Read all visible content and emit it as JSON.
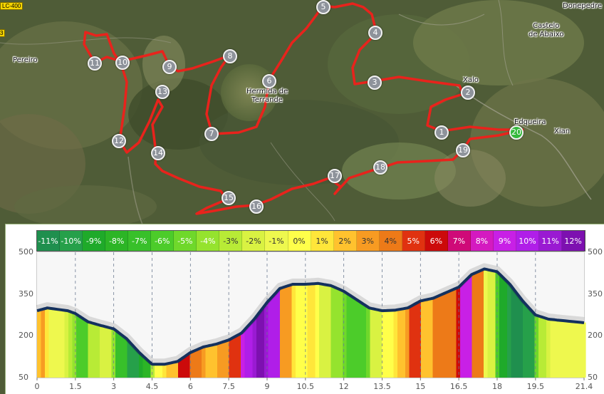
{
  "map": {
    "places": [
      {
        "id": "pereiro",
        "name": "Pereiro"
      },
      {
        "id": "donepedre",
        "name": "Donepedre"
      },
      {
        "id": "castelo",
        "name": "Castelo\nde Abaixo"
      },
      {
        "id": "xalo",
        "name": "Xalo"
      },
      {
        "id": "ermida",
        "name": "Hermida de\nTerrande"
      },
      {
        "id": "edqueira",
        "name": "Edqueira"
      },
      {
        "id": "xian",
        "name": "Xian"
      }
    ],
    "road_tags": [
      "LC-400",
      "3"
    ],
    "waypoints": [
      "1",
      "2",
      "3",
      "4",
      "5",
      "6",
      "7",
      "8",
      "9",
      "10",
      "11",
      "12",
      "13",
      "14",
      "15",
      "16",
      "17",
      "18",
      "19",
      "20"
    ],
    "route_color": "#e8231c"
  },
  "legend": [
    {
      "label": "-11%",
      "color": "#1f8f4e"
    },
    {
      "label": "-10%",
      "color": "#26a04a"
    },
    {
      "label": "-9%",
      "color": "#1faa2a"
    },
    {
      "label": "-8%",
      "color": "#2cb526"
    },
    {
      "label": "-7%",
      "color": "#38c02a"
    },
    {
      "label": "-6%",
      "color": "#4ccc2a"
    },
    {
      "label": "-5%",
      "color": "#6fd82b"
    },
    {
      "label": "-4%",
      "color": "#95e32e"
    },
    {
      "label": "-3%",
      "color": "#b8eb36"
    },
    {
      "label": "-2%",
      "color": "#d9f242"
    },
    {
      "label": "-1%",
      "color": "#eef84e"
    },
    {
      "label": "0%",
      "color": "#ffff4a"
    },
    {
      "label": "1%",
      "color": "#ffe63a"
    },
    {
      "label": "2%",
      "color": "#ffc22e"
    },
    {
      "label": "3%",
      "color": "#f79b22"
    },
    {
      "label": "4%",
      "color": "#ed7a18"
    },
    {
      "label": "5%",
      "color": "#e03210"
    },
    {
      "label": "6%",
      "color": "#cc0a0a"
    },
    {
      "label": "7%",
      "color": "#cf0a78"
    },
    {
      "label": "8%",
      "color": "#d41ac0"
    },
    {
      "label": "9%",
      "color": "#c820e6"
    },
    {
      "label": "10%",
      "color": "#b01ee8"
    },
    {
      "label": "11%",
      "color": "#9a1ad2"
    },
    {
      "label": "12%",
      "color": "#7d10b0"
    }
  ],
  "chart_data": {
    "type": "area",
    "x_ticks": [
      "0",
      "1.5",
      "3",
      "4.5",
      "6",
      "7.5",
      "9",
      "10.5",
      "12",
      "13.5",
      "15",
      "16.5",
      "18",
      "19.5",
      "21.4"
    ],
    "y_ticks": [
      "500",
      "350",
      "200",
      "50"
    ],
    "xlim": [
      0,
      21.4
    ],
    "ylim": [
      50,
      500
    ],
    "grid": true,
    "x": [
      0,
      0.4,
      1.2,
      1.5,
      2,
      2.5,
      3,
      3.5,
      4,
      4.5,
      5,
      5.5,
      6,
      6.5,
      7,
      7.5,
      8,
      8.5,
      9,
      9.5,
      10,
      10.5,
      11,
      11.5,
      12,
      12.5,
      13,
      13.5,
      14,
      14.5,
      15,
      15.5,
      16,
      16.5,
      17,
      17.5,
      18,
      18.5,
      19,
      19.5,
      20,
      20.5,
      21.4
    ],
    "elevation": [
      290,
      300,
      290,
      280,
      250,
      237,
      225,
      190,
      140,
      98,
      98,
      108,
      140,
      160,
      170,
      185,
      210,
      260,
      320,
      370,
      385,
      385,
      388,
      380,
      360,
      330,
      300,
      290,
      292,
      300,
      325,
      335,
      355,
      375,
      420,
      440,
      430,
      385,
      325,
      275,
      260,
      255,
      247
    ]
  }
}
